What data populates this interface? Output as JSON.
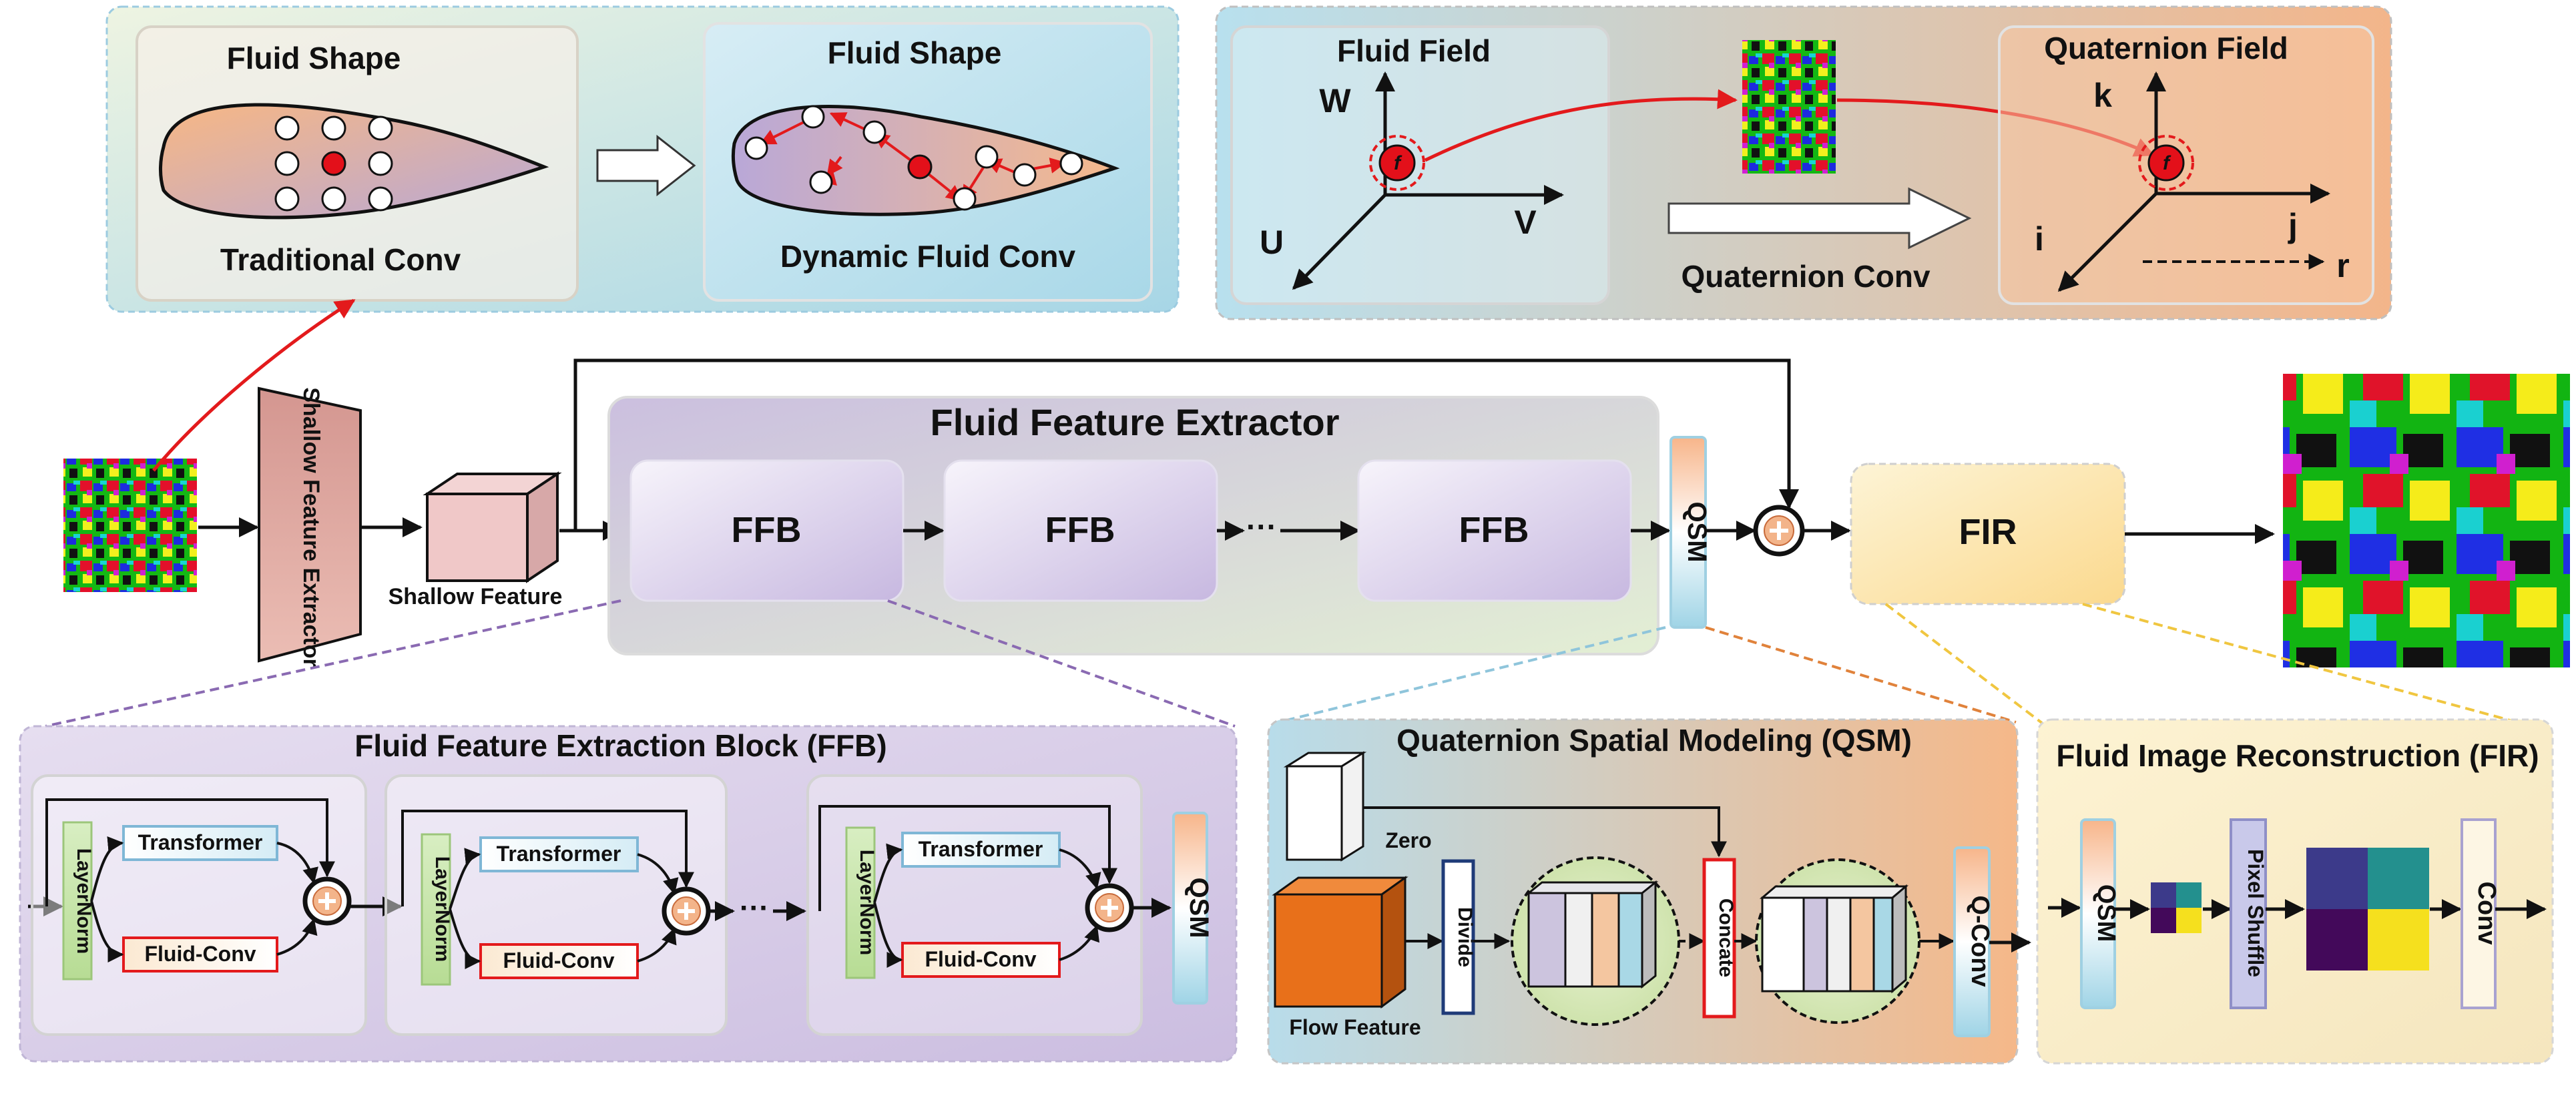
{
  "panels": {
    "fluid_shape": {
      "traditional_title": "Fluid Shape",
      "traditional_caption": "Traditional Conv",
      "dynamic_title": "Fluid Shape",
      "dynamic_caption": "Dynamic Fluid Conv"
    },
    "quaternion": {
      "fluid_field_title": "Fluid Field",
      "axes_fluid": {
        "w": "W",
        "u": "U",
        "v": "V"
      },
      "operation": "Quaternion Conv",
      "quaternion_field_title": "Quaternion Field",
      "axes_quat": {
        "k": "k",
        "i": "i",
        "j": "j",
        "r": "r"
      },
      "point_symbol": "f"
    }
  },
  "main": {
    "shallow_extractor": "Shallow Feature Extractor",
    "shallow_feature": "Shallow Feature",
    "extractor_title": "Fluid Feature Extractor",
    "ffb_labels": [
      "FFB",
      "FFB",
      "FFB"
    ],
    "ellipsis": "···",
    "qsm": "QSM",
    "fir": "FIR"
  },
  "ffb_detail": {
    "title": "Fluid Feature Extraction Block (FFB)",
    "layernorm": "LayerNorm",
    "transformer": "Transformer",
    "fluid_conv": "Fluid-Conv",
    "qsm": "QSM",
    "ellipsis": "···"
  },
  "qsm_detail": {
    "title": "Quaternion Spatial Modeling (QSM)",
    "zero": "Zero",
    "flow_feature": "Flow Feature",
    "divide": "Divide",
    "concate": "Concate",
    "qconv": "Q-Conv"
  },
  "fir_detail": {
    "title": "Fluid Image Reconstruction (FIR)",
    "qsm": "QSM",
    "pixel_shuffle": "Pixel Shuffle",
    "conv": "Conv"
  },
  "colors": {
    "red_arrow": "#e31a1c",
    "fluid_shape": "#f6b889",
    "shallow_extractor": "#e0a7a0",
    "orange_cube": "#e8701a",
    "ffb_panel": "#d9cfe6",
    "qsm_panel": "#f6c89a",
    "fir_panel": "#fbe9b8",
    "layernorm": "#c8e6a8",
    "transformer_border": "#7fb7d6",
    "fluid_conv_border": "#e31a1c",
    "divide_border": "#1f3b78",
    "purple_dash": "#8a6ab2",
    "blue_dash": "#8fc5db",
    "orange_dash": "#e0823b",
    "yellow_dash": "#f0c640"
  }
}
